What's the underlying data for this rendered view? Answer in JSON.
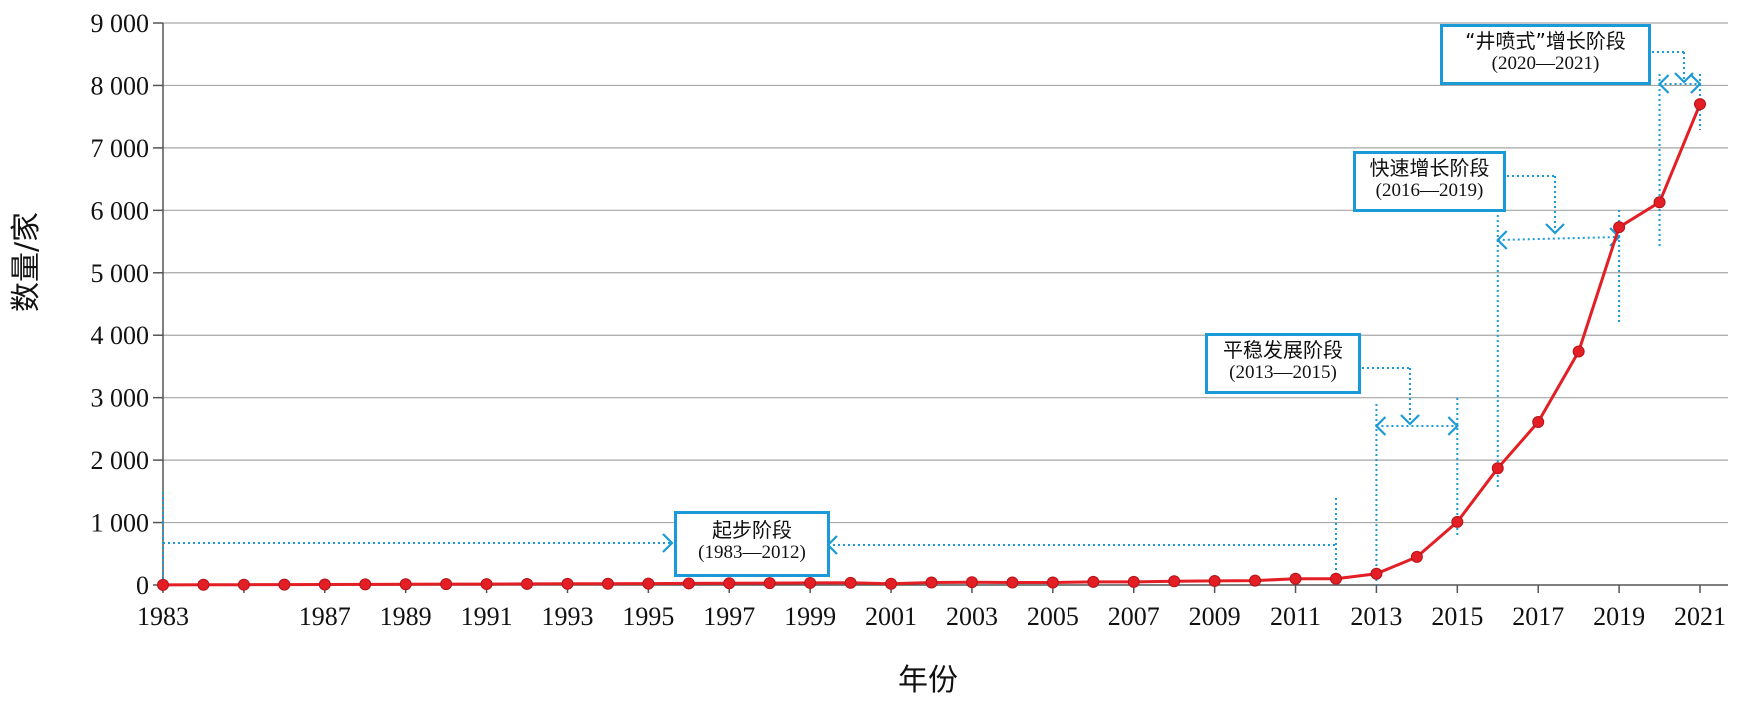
{
  "chart_data": {
    "type": "line",
    "ylabel": "数量/家",
    "xlabel": "年份",
    "ylim": [
      0,
      9000
    ],
    "xlim": [
      1983,
      2021
    ],
    "y_ticks": [
      "0",
      "1 000",
      "2 000",
      "3 000",
      "4 000",
      "5 000",
      "6 000",
      "7 000",
      "8 000",
      "9 000"
    ],
    "y_tick_values": [
      0,
      1000,
      2000,
      3000,
      4000,
      5000,
      6000,
      7000,
      8000,
      9000
    ],
    "x_ticks": [
      "1983",
      "1987",
      "1989",
      "1991",
      "1993",
      "1995",
      "1997",
      "1999",
      "2001",
      "2003",
      "2005",
      "2007",
      "2009",
      "2011",
      "2013",
      "2015",
      "2017",
      "2019",
      "2021"
    ],
    "x_tick_values": [
      1983,
      1987,
      1989,
      1991,
      1993,
      1995,
      1997,
      1999,
      2001,
      2003,
      2005,
      2007,
      2009,
      2011,
      2013,
      2015,
      2017,
      2019,
      2021
    ],
    "grid": true,
    "series": [
      {
        "color": "#e31e24",
        "x": [
          1983,
          1984,
          1985,
          1986,
          1987,
          1988,
          1989,
          1990,
          1991,
          1992,
          1993,
          1994,
          1995,
          1996,
          1997,
          1998,
          1999,
          2000,
          2001,
          2002,
          2003,
          2004,
          2005,
          2006,
          2007,
          2008,
          2009,
          2010,
          2011,
          2012,
          2013,
          2014,
          2015,
          2016,
          2017,
          2018,
          2019,
          2020,
          2021
        ],
        "values": [
          2,
          4,
          5,
          6,
          8,
          10,
          12,
          14,
          15,
          17,
          19,
          20,
          22,
          25,
          28,
          30,
          33,
          35,
          20,
          40,
          45,
          40,
          40,
          50,
          50,
          60,
          65,
          70,
          100,
          100,
          180,
          450,
          1010,
          1870,
          2610,
          3740,
          5730,
          6130,
          7700
        ]
      }
    ],
    "annotations": [
      {
        "label": "起步阶段",
        "range": "(1983—2012)",
        "from": 1983,
        "to": 2012
      },
      {
        "label": "平稳发展阶段",
        "range": "(2013—2015)",
        "from": 2013,
        "to": 2015
      },
      {
        "label": "快速增长阶段",
        "range": "(2016—2019)",
        "from": 2016,
        "to": 2019
      },
      {
        "label": "“井喷式”增长阶段",
        "range": "(2020—2021)",
        "from": 2020,
        "to": 2021
      }
    ]
  },
  "colors": {
    "line": "#e31e24",
    "annotation": "#1a9ad6",
    "grid": "#a6a6a6",
    "axis": "#555555"
  }
}
